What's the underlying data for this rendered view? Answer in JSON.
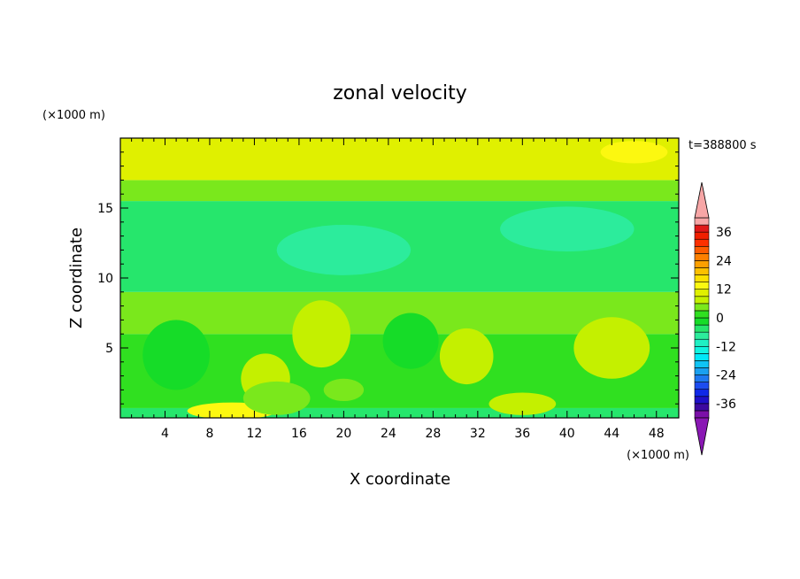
{
  "chart_data": {
    "type": "heatmap",
    "title": "zonal velocity",
    "xlabel": "X coordinate",
    "ylabel": "Z coordinate",
    "x_unit": "(×1000 m)",
    "y_unit": "(×1000 m)",
    "time_label": "t=388800 s",
    "xlim": [
      0,
      50
    ],
    "ylim": [
      0,
      20
    ],
    "x_ticks": [
      4,
      8,
      12,
      16,
      20,
      24,
      28,
      32,
      36,
      40,
      44,
      48
    ],
    "y_ticks": [
      5,
      10,
      15
    ],
    "colorbar": {
      "levels": [
        -42,
        -39,
        -36,
        -33,
        -30,
        -27,
        -24,
        -21,
        -18,
        -15,
        -12,
        -9,
        -6,
        -3,
        0,
        3,
        6,
        9,
        12,
        15,
        18,
        21,
        24,
        27,
        30,
        33,
        36,
        39,
        42
      ],
      "tick_labels": [
        "36",
        "24",
        "12",
        "0",
        "-12",
        "-24",
        "-36"
      ],
      "colors": [
        "#7b10a8",
        "#3d0aa0",
        "#1f10c8",
        "#1028e8",
        "#1c4cf0",
        "#1e78f0",
        "#1aa0f0",
        "#10c4f4",
        "#00e8f8",
        "#10f4e0",
        "#20f0c4",
        "#2cec9c",
        "#26e66c",
        "#16dc28",
        "#30e020",
        "#7ae81c",
        "#c4f000",
        "#e0f000",
        "#fcf810",
        "#fce000",
        "#fcc000",
        "#fca000",
        "#fc8000",
        "#fc5c00",
        "#fc3000",
        "#f02000",
        "#e01818",
        "#f7a6a6"
      ],
      "under_color": "#8a18b4",
      "over_color": "#f7a6a6"
    },
    "field_bands": [
      {
        "z": [
          0.0,
          0.7
        ],
        "value": -6
      },
      {
        "z": [
          0.7,
          6.0
        ],
        "value": 0
      },
      {
        "z": [
          6.0,
          9.0
        ],
        "value": 3
      },
      {
        "z": [
          9.0,
          15.5
        ],
        "value": -6
      },
      {
        "z": [
          15.5,
          17.0
        ],
        "value": 3
      },
      {
        "z": [
          17.0,
          20.0
        ],
        "value": 9
      }
    ],
    "field_features": [
      {
        "x": 10,
        "z": 0.5,
        "rx": 4,
        "rz": 0.6,
        "value": 12
      },
      {
        "x": 13,
        "z": 2.8,
        "rx": 2.2,
        "rz": 1.8,
        "value": 6
      },
      {
        "x": 14,
        "z": 1.4,
        "rx": 3,
        "rz": 1.2,
        "value": 3
      },
      {
        "x": 18,
        "z": 6.0,
        "rx": 2.6,
        "rz": 2.4,
        "value": 6
      },
      {
        "x": 31,
        "z": 4.4,
        "rx": 2.4,
        "rz": 2.0,
        "value": 6
      },
      {
        "x": 44,
        "z": 5.0,
        "rx": 3.4,
        "rz": 2.2,
        "value": 6
      },
      {
        "x": 36,
        "z": 1.0,
        "rx": 3,
        "rz": 0.8,
        "value": 6
      },
      {
        "x": 20,
        "z": 2.0,
        "rx": 1.8,
        "rz": 0.8,
        "value": 3
      },
      {
        "x": 20,
        "z": 12.0,
        "rx": 6,
        "rz": 1.8,
        "value": -9
      },
      {
        "x": 40,
        "z": 13.5,
        "rx": 6,
        "rz": 1.6,
        "value": -9
      },
      {
        "x": 5,
        "z": 4.5,
        "rx": 3,
        "rz": 2.5,
        "value": -3
      },
      {
        "x": 26,
        "z": 5.5,
        "rx": 2.5,
        "rz": 2,
        "value": -3
      },
      {
        "x": 46,
        "z": 19.0,
        "rx": 3,
        "rz": 0.8,
        "value": 12
      }
    ]
  }
}
